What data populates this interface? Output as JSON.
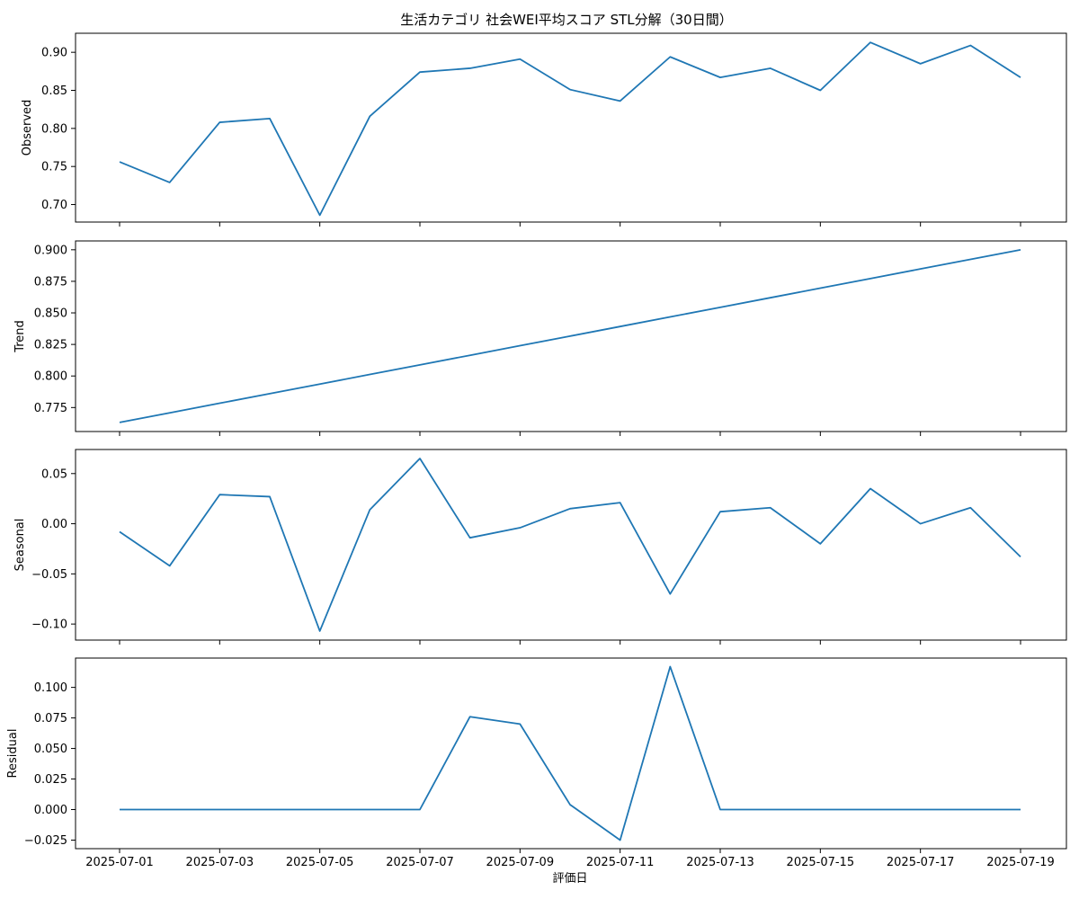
{
  "chart_data": {
    "type": "line",
    "title": "生活カテゴリ 社会WEI平均スコア STL分解（30日間）",
    "xlabel": "評価日",
    "x": [
      "2025-07-01",
      "2025-07-02",
      "2025-07-03",
      "2025-07-04",
      "2025-07-05",
      "2025-07-06",
      "2025-07-07",
      "2025-07-08",
      "2025-07-09",
      "2025-07-10",
      "2025-07-11",
      "2025-07-12",
      "2025-07-13",
      "2025-07-14",
      "2025-07-15",
      "2025-07-16",
      "2025-07-17",
      "2025-07-18",
      "2025-07-19"
    ],
    "x_tick_labels": [
      "2025-07-01",
      "2025-07-03",
      "2025-07-05",
      "2025-07-07",
      "2025-07-09",
      "2025-07-11",
      "2025-07-13",
      "2025-07-15",
      "2025-07-17",
      "2025-07-19"
    ],
    "line_color": "#1f77b4",
    "grid": false,
    "panels": [
      {
        "ylabel": "Observed",
        "ylim": [
          0.677,
          0.925
        ],
        "ticks": [
          0.7,
          0.75,
          0.8,
          0.85,
          0.9
        ],
        "tick_labels": [
          "0.70",
          "0.75",
          "0.80",
          "0.85",
          "0.90"
        ],
        "values": [
          0.756,
          0.729,
          0.808,
          0.813,
          0.686,
          0.816,
          0.874,
          0.879,
          0.891,
          0.851,
          0.836,
          0.894,
          0.867,
          0.879,
          0.85,
          0.913,
          0.885,
          0.909,
          0.867
        ]
      },
      {
        "ylabel": "Trend",
        "ylim": [
          0.756,
          0.907
        ],
        "ticks": [
          0.775,
          0.8,
          0.825,
          0.85,
          0.875,
          0.9
        ],
        "tick_labels": [
          "0.775",
          "0.800",
          "0.825",
          "0.850",
          "0.875",
          "0.900"
        ],
        "values": [
          0.7632,
          0.7708,
          0.7784,
          0.786,
          0.7936,
          0.8012,
          0.8088,
          0.8164,
          0.824,
          0.8316,
          0.8392,
          0.8468,
          0.8544,
          0.862,
          0.8696,
          0.8772,
          0.8848,
          0.8924,
          0.9
        ]
      },
      {
        "ylabel": "Seasonal",
        "ylim": [
          -0.116,
          0.074
        ],
        "ticks": [
          -0.1,
          -0.05,
          0.0,
          0.05
        ],
        "tick_labels": [
          "−0.10",
          "−0.05",
          "0.00",
          "0.05"
        ],
        "values": [
          -0.008,
          -0.042,
          0.029,
          0.027,
          -0.107,
          0.014,
          0.065,
          -0.014,
          -0.004,
          0.015,
          0.021,
          -0.07,
          0.012,
          0.016,
          -0.02,
          0.035,
          0.0,
          0.016,
          -0.033
        ]
      },
      {
        "ylabel": "Residual",
        "ylim": [
          -0.032,
          0.124
        ],
        "ticks": [
          -0.025,
          0.0,
          0.025,
          0.05,
          0.075,
          0.1
        ],
        "tick_labels": [
          "−0.025",
          "0.000",
          "0.025",
          "0.050",
          "0.075",
          "0.100"
        ],
        "values": [
          0.0,
          0.0,
          0.0,
          0.0,
          0.0,
          0.0,
          0.0,
          0.076,
          0.07,
          0.004,
          -0.025,
          0.117,
          0.0,
          0.0,
          0.0,
          0.0,
          0.0,
          0.0,
          0.0
        ]
      }
    ]
  }
}
